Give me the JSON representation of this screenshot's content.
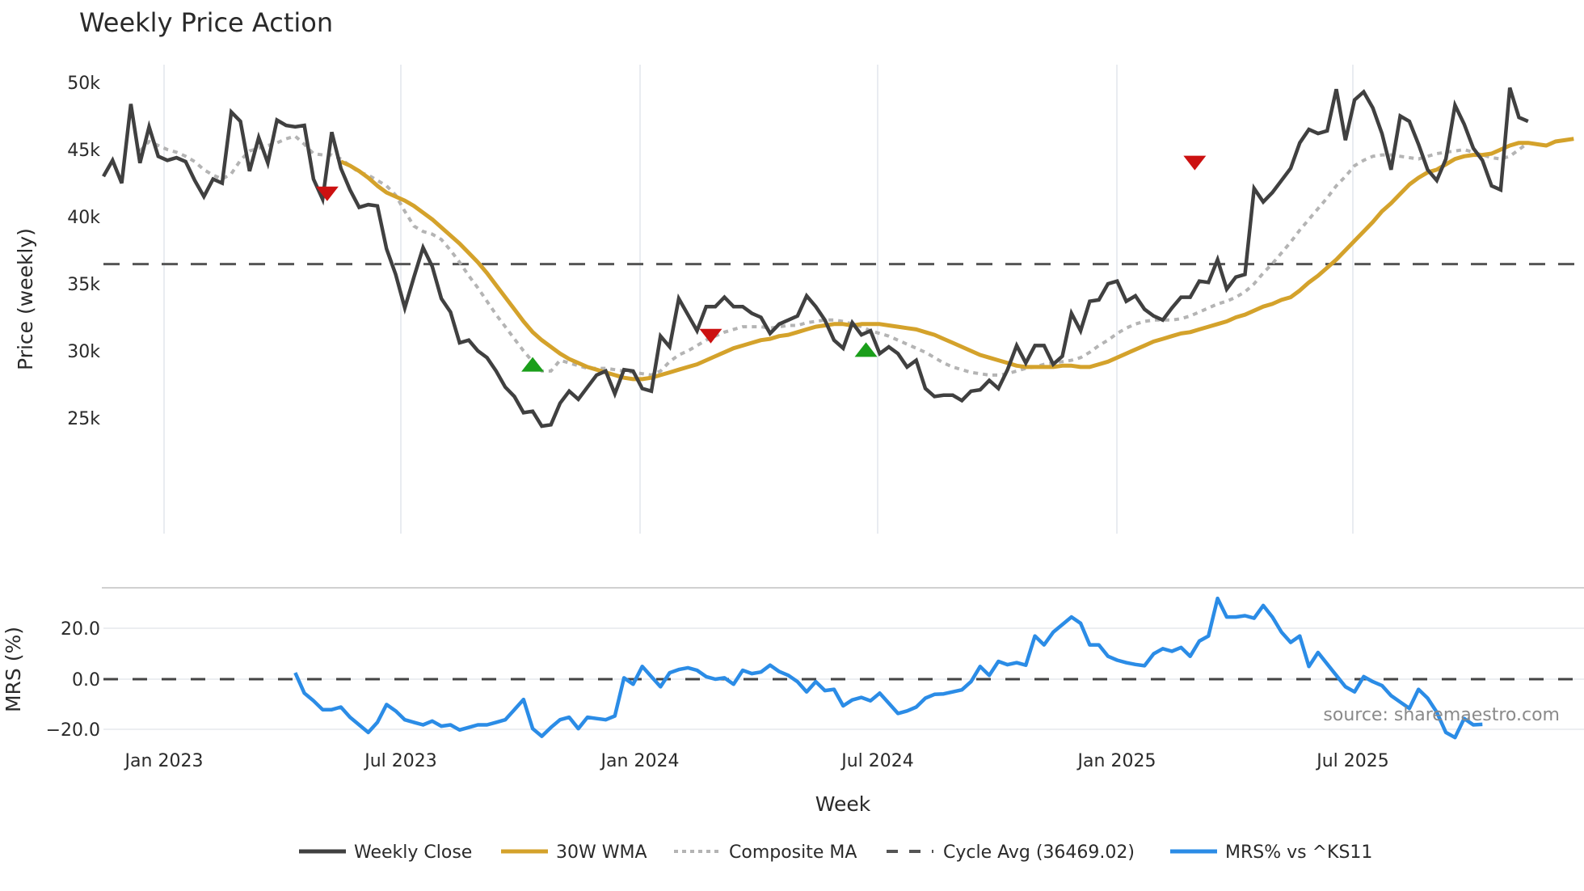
{
  "chart_data": [
    {
      "type": "line",
      "title": "Weekly Price Action",
      "xlabel": "Week",
      "ylabel": "Price (weekly)",
      "ylim": [
        23000,
        51500
      ],
      "y_ticks": [
        25000,
        30000,
        35000,
        40000,
        45000,
        50000
      ],
      "y_tick_labels": [
        "25k",
        "30k",
        "35k",
        "40k",
        "45k",
        "50k"
      ],
      "x_ticks": [
        "Jan 2023",
        "Jul 2023",
        "Jan 2024",
        "Jul 2024",
        "Jan 2025",
        "Jul 2025"
      ],
      "x_range": [
        "2022-11-14",
        "2025-11-17"
      ],
      "grid": "vertical at x ticks",
      "legend_position": "bottom-center",
      "series": [
        {
          "name": "Weekly Close",
          "color": "#404040",
          "start_week_index": 0,
          "values": [
            43000,
            44200,
            42500,
            48400,
            44000,
            46700,
            44500,
            44200,
            44400,
            44100,
            42700,
            41500,
            42800,
            42500,
            47800,
            47100,
            43400,
            45900,
            44000,
            47200,
            46800,
            46700,
            46800,
            42800,
            41300,
            46300,
            43600,
            42000,
            40700,
            40900,
            40800,
            37600,
            35700,
            33200,
            35500,
            37700,
            36300,
            33900,
            32900,
            30600,
            30800,
            30000,
            29500,
            28500,
            27300,
            26600,
            25400,
            25500,
            24400,
            24500,
            26100,
            27000,
            26400,
            27300,
            28200,
            28500,
            26800,
            28600,
            28500,
            27200,
            27000,
            31100,
            30300,
            33900,
            32700,
            31500,
            33300,
            33300,
            34000,
            33300,
            33300,
            32800,
            32500,
            31300,
            32000,
            32300,
            32600,
            34100,
            33300,
            32300,
            30800,
            30200,
            32100,
            31200,
            31500,
            29800,
            30300,
            29800,
            28800,
            29300,
            27200,
            26600,
            26700,
            26700,
            26300,
            27000,
            27100,
            27800,
            27200,
            28600,
            30400,
            29100,
            30400,
            30400,
            29000,
            29600,
            32800,
            31500,
            33700,
            33800,
            35000,
            35200,
            33700,
            34100,
            33100,
            32600,
            32300,
            33200,
            34000,
            34000,
            35200,
            35100,
            36800,
            34600,
            35500,
            35700,
            42100,
            41100,
            41800,
            42700,
            43600,
            45500,
            46500,
            46200,
            46400,
            49500,
            45700,
            48700,
            49300,
            48100,
            46200,
            43500,
            47500,
            47100,
            45400,
            43500,
            42700,
            44300,
            48300,
            46900,
            45100,
            44200,
            42300,
            42000,
            49600,
            47400,
            47100
          ],
          "legend_label": "Weekly Close"
        },
        {
          "name": "30W WMA",
          "color": "#d4a22b",
          "start_week_index": 26,
          "values": [
            44100,
            43800,
            43400,
            42900,
            42300,
            41800,
            41500,
            41200,
            40800,
            40300,
            39800,
            39200,
            38600,
            38000,
            37300,
            36600,
            35800,
            34900,
            34000,
            33100,
            32200,
            31400,
            30800,
            30300,
            29800,
            29400,
            29100,
            28800,
            28600,
            28400,
            28200,
            28000,
            27900,
            27900,
            28000,
            28200,
            28400,
            28600,
            28800,
            29000,
            29300,
            29600,
            29900,
            30200,
            30400,
            30600,
            30800,
            30900,
            31100,
            31200,
            31400,
            31600,
            31800,
            31900,
            32000,
            32000,
            31900,
            32000,
            32000,
            32000,
            31900,
            31800,
            31700,
            31600,
            31400,
            31200,
            30900,
            30600,
            30300,
            30000,
            29700,
            29500,
            29300,
            29100,
            28900,
            28800,
            28800,
            28800,
            28800,
            28900,
            28900,
            28800,
            28800,
            29000,
            29200,
            29500,
            29800,
            30100,
            30400,
            30700,
            30900,
            31100,
            31300,
            31400,
            31600,
            31800,
            32000,
            32200,
            32500,
            32700,
            33000,
            33300,
            33500,
            33800,
            34000,
            34500,
            35100,
            35600,
            36200,
            36800,
            37500,
            38200,
            38900,
            39600,
            40400,
            41000,
            41700,
            42400,
            42900,
            43300,
            43500,
            43900,
            44300,
            44500,
            44600,
            44600,
            44700,
            45000,
            45300,
            45500,
            45500,
            45400,
            45300,
            45600,
            45700,
            45800
          ],
          "legend_label": "30W WMA"
        },
        {
          "name": "Composite MA",
          "color": "#b4b4b4",
          "start_week_index": 4,
          "values": [
            44900,
            45600,
            45300,
            45000,
            44800,
            44500,
            44100,
            43500,
            43100,
            42800,
            43200,
            44200,
            44900,
            45100,
            45300,
            45500,
            45800,
            46000,
            45400,
            44700,
            44600,
            44600,
            44300,
            43800,
            43300,
            43100,
            42700,
            42300,
            41600,
            40400,
            39300,
            38900,
            38700,
            38300,
            37500,
            36600,
            35600,
            34700,
            33700,
            32700,
            31800,
            30900,
            30000,
            29200,
            28500,
            28500,
            29300,
            29100,
            28900,
            28700,
            28700,
            28700,
            28600,
            28500,
            28400,
            28300,
            28200,
            28500,
            29200,
            29700,
            30000,
            30400,
            30800,
            31100,
            31400,
            31600,
            31800,
            31800,
            31800,
            31700,
            31800,
            31900,
            31900,
            32100,
            32200,
            32300,
            32300,
            32200,
            32000,
            31800,
            31500,
            31300,
            31100,
            30800,
            30500,
            30200,
            29900,
            29500,
            29100,
            28800,
            28600,
            28400,
            28300,
            28200,
            28200,
            28300,
            28500,
            28700,
            28800,
            29000,
            29100,
            29200,
            29300,
            29500,
            29900,
            30400,
            30800,
            31300,
            31700,
            32000,
            32200,
            32300,
            32300,
            32300,
            32400,
            32600,
            32900,
            33200,
            33500,
            33700,
            34000,
            34400,
            35000,
            35800,
            36500,
            37300,
            38100,
            39000,
            39800,
            40600,
            41400,
            42300,
            43000,
            43800,
            44200,
            44500,
            44600,
            44600,
            44500,
            44400,
            44300,
            44500,
            44700,
            44800,
            44900,
            45000,
            44800,
            44600,
            44400,
            44300,
            44500,
            45000,
            45500
          ],
          "legend_label": "Composite MA"
        },
        {
          "name": "Cycle Avg",
          "color": "#555555",
          "constant": 36469.02,
          "style": "dashed",
          "legend_label": "Cycle Avg (36469.02)"
        }
      ],
      "markers": [
        {
          "type": "sell",
          "shape": "triangle-down",
          "color": "#cc1111",
          "week_index": 24.5,
          "value": 41700
        },
        {
          "type": "buy",
          "shape": "triangle-up",
          "color": "#1a9e1a",
          "week_index": 47,
          "value": 29000
        },
        {
          "type": "sell",
          "shape": "triangle-down",
          "color": "#cc1111",
          "week_index": 66.5,
          "value": 31100
        },
        {
          "type": "buy",
          "shape": "triangle-up",
          "color": "#1a9e1a",
          "week_index": 83.5,
          "value": 30100
        },
        {
          "type": "sell",
          "shape": "triangle-down",
          "color": "#cc1111",
          "week_index": 119.5,
          "value": 44000
        }
      ]
    },
    {
      "type": "line",
      "title": "",
      "xlabel": "Week",
      "ylabel": "MRS (%)",
      "ylim": [
        -27,
        31
      ],
      "y_ticks": [
        -20,
        0,
        20
      ],
      "y_tick_labels": [
        "−20.0",
        "0.0",
        "20.0"
      ],
      "series": [
        {
          "name": "MRS% vs ^KS11",
          "color": "#2b8ce6",
          "start_week_index": 21,
          "values": [
            2.5,
            -5.5,
            -8.5,
            -12,
            -12,
            -11,
            -15,
            -18,
            -21,
            -17,
            -10,
            -12.5,
            -16,
            -17,
            -18,
            -16.5,
            -18.5,
            -18,
            -20,
            -19,
            -18,
            -18,
            -17,
            -16,
            -12,
            -8,
            -19.5,
            -22.5,
            -19,
            -16,
            -15,
            -19.5,
            -15,
            -15.5,
            -16,
            -14.5,
            0.5,
            -2,
            5,
            1,
            -3,
            2.5,
            3.8,
            4.5,
            3.5,
            1,
            0,
            0.5,
            -2,
            3.5,
            2.2,
            2.8,
            5.5,
            3,
            1.5,
            -1,
            -5,
            -1,
            -4.5,
            -4,
            -10.5,
            -8.2,
            -7.2,
            -8.5,
            -5.5,
            -9.5,
            -13.5,
            -12.5,
            -11,
            -7.5,
            -6,
            -5.8,
            -5,
            -4.2,
            -1,
            5,
            1.5,
            7,
            5.7,
            6.5,
            5.5,
            17,
            13.5,
            18.5,
            21.5,
            24.5,
            22,
            13.5,
            13.5,
            9,
            7.5,
            6.5,
            5.8,
            5.3,
            10,
            12,
            11,
            12.5,
            9,
            15,
            17,
            31.8,
            24.5,
            24.5,
            25,
            24,
            29,
            24.5,
            18.5,
            14.5,
            17,
            5,
            10.5,
            6,
            1.5,
            -3,
            -5,
            1,
            -1,
            -2.5,
            -6.5,
            -9,
            -11.5,
            -4,
            -7.5,
            -13,
            -21,
            -23,
            -15.5,
            -18,
            -17.8
          ],
          "legend_label": "MRS% vs ^KS11"
        },
        {
          "name": "Zero line",
          "constant": 0,
          "style": "dashed",
          "color": "#444444"
        }
      ]
    }
  ],
  "header": {
    "title": "Weekly Price Action"
  },
  "axes": {
    "price_ylabel": "Price (weekly)",
    "mrs_ylabel": "MRS (%)",
    "xlabel": "Week",
    "price_ticks": [
      "50k",
      "45k",
      "40k",
      "35k",
      "30k",
      "25k"
    ],
    "mrs_ticks": [
      "20.0",
      "0.0",
      "−20.0"
    ],
    "x_ticks": [
      "Jan 2023",
      "Jul 2023",
      "Jan 2024",
      "Jul 2024",
      "Jan 2025",
      "Jul 2025"
    ]
  },
  "legend": {
    "items": [
      {
        "label": "Weekly Close",
        "color": "#404040",
        "style": "solid"
      },
      {
        "label": "30W WMA",
        "color": "#d4a22b",
        "style": "solid"
      },
      {
        "label": "Composite MA",
        "color": "#b4b4b4",
        "style": "dotted"
      },
      {
        "label": "Cycle Avg (36469.02)",
        "color": "#555555",
        "style": "dashed"
      },
      {
        "label": "MRS% vs ^KS11",
        "color": "#2b8ce6",
        "style": "solid"
      }
    ]
  },
  "annotation": {
    "source": "source: sharemaestro.com"
  }
}
